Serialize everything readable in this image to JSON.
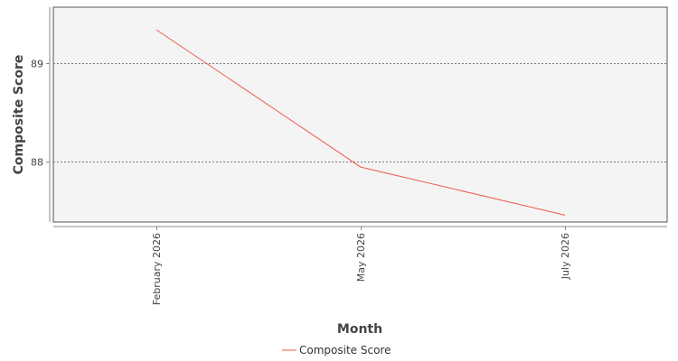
{
  "chart_data": {
    "type": "line",
    "title": "",
    "xlabel": "Month",
    "ylabel": "Composite Score",
    "categories": [
      "February 2026",
      "May 2026",
      "July 2026"
    ],
    "series": [
      {
        "name": "Composite Score",
        "values": [
          89.34,
          87.94,
          87.45
        ],
        "color": "#f05a4f"
      }
    ],
    "y_ticks": [
      88,
      89
    ],
    "ylim": [
      87.38,
      89.57
    ],
    "grid": true,
    "legend_position": "bottom-center",
    "plot_background": "#f4f4f4"
  }
}
